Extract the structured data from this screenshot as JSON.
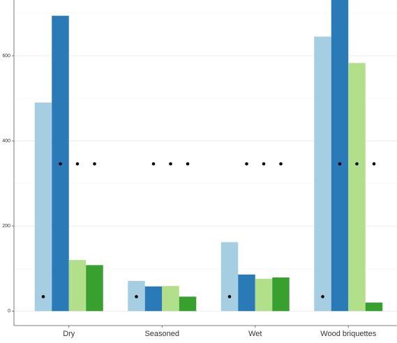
{
  "chart_data": {
    "type": "bar",
    "categories": [
      "Dry",
      "Seasoned",
      "Wet",
      "Wood briquettes"
    ],
    "series": [
      {
        "color": "#a6cee3",
        "values": [
          490,
          71,
          162,
          645
        ],
        "points": [
          34,
          34,
          34,
          34
        ]
      },
      {
        "color": "#2a7ab8",
        "values": [
          694,
          58,
          86,
          750
        ],
        "points": [
          346,
          346,
          346,
          346
        ]
      },
      {
        "color": "#b2df8a",
        "values": [
          120,
          59,
          76,
          583
        ],
        "points": [
          346,
          346,
          346,
          346
        ]
      },
      {
        "color": "#37a02f",
        "values": [
          108,
          34,
          79,
          20
        ],
        "points": [
          346,
          346,
          346,
          346
        ]
      }
    ],
    "point_color": "#000000",
    "ylim": [
      -34,
      731
    ],
    "yticks": [
      0,
      200,
      400,
      600
    ],
    "minor_yticks": [
      100,
      300,
      500,
      700
    ],
    "grid": true
  }
}
